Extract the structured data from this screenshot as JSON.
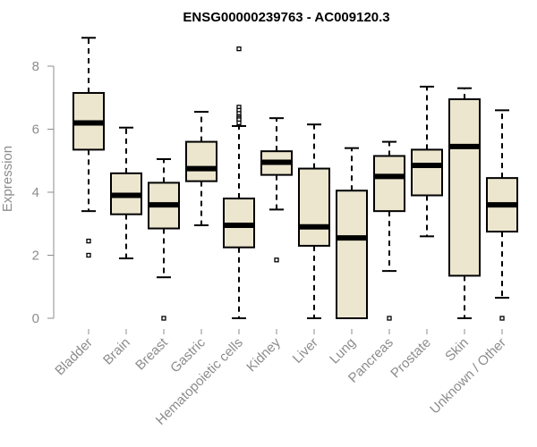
{
  "chart_data": {
    "type": "boxplot",
    "title": "ENSG00000239763 - AC009120.3",
    "ylabel": "Expression",
    "xlabel": "",
    "ylim": [
      0,
      9
    ],
    "yticks": [
      0,
      2,
      4,
      6,
      8
    ],
    "box_fill": "#ede6cf",
    "box_stroke": "#000000",
    "axis_color": "#8c8c8c",
    "categories": [
      "Bladder",
      "Brain",
      "Breast",
      "Gastric",
      "Hematopoietic cells",
      "Kidney",
      "Liver",
      "Lung",
      "Pancreas",
      "Prostate",
      "Skin",
      "Unknown / Other"
    ],
    "boxes": [
      {
        "whisker_low": 3.4,
        "q1": 5.35,
        "median": 6.2,
        "q3": 7.15,
        "whisker_high": 8.9,
        "outliers": [
          2.45,
          2.0
        ]
      },
      {
        "whisker_low": 1.9,
        "q1": 3.3,
        "median": 3.9,
        "q3": 4.6,
        "whisker_high": 6.05,
        "outliers": []
      },
      {
        "whisker_low": 1.3,
        "q1": 2.85,
        "median": 3.6,
        "q3": 4.3,
        "whisker_high": 5.05,
        "outliers": [
          0.0
        ]
      },
      {
        "whisker_low": 2.95,
        "q1": 4.35,
        "median": 4.75,
        "q3": 5.6,
        "whisker_high": 6.55,
        "outliers": []
      },
      {
        "whisker_low": 0.0,
        "q1": 2.25,
        "median": 2.95,
        "q3": 3.8,
        "whisker_high": 6.1,
        "outliers": [
          8.55,
          6.7,
          6.6,
          6.5,
          6.4,
          6.35,
          6.3,
          6.2
        ]
      },
      {
        "whisker_low": 3.45,
        "q1": 4.55,
        "median": 4.95,
        "q3": 5.3,
        "whisker_high": 6.35,
        "outliers": [
          1.85
        ]
      },
      {
        "whisker_low": 0.0,
        "q1": 2.3,
        "median": 2.9,
        "q3": 4.75,
        "whisker_high": 6.15,
        "outliers": []
      },
      {
        "whisker_low": 0.0,
        "q1": 0.0,
        "median": 2.55,
        "q3": 4.05,
        "whisker_high": 5.4,
        "outliers": []
      },
      {
        "whisker_low": 1.5,
        "q1": 3.4,
        "median": 4.5,
        "q3": 5.15,
        "whisker_high": 5.6,
        "outliers": [
          0.0
        ]
      },
      {
        "whisker_low": 2.6,
        "q1": 3.9,
        "median": 4.85,
        "q3": 5.35,
        "whisker_high": 7.35,
        "outliers": []
      },
      {
        "whisker_low": 0.0,
        "q1": 1.35,
        "median": 5.45,
        "q3": 6.95,
        "whisker_high": 7.3,
        "outliers": []
      },
      {
        "whisker_low": 0.65,
        "q1": 2.75,
        "median": 3.6,
        "q3": 4.45,
        "whisker_high": 6.6,
        "outliers": [
          0.0
        ]
      }
    ]
  }
}
